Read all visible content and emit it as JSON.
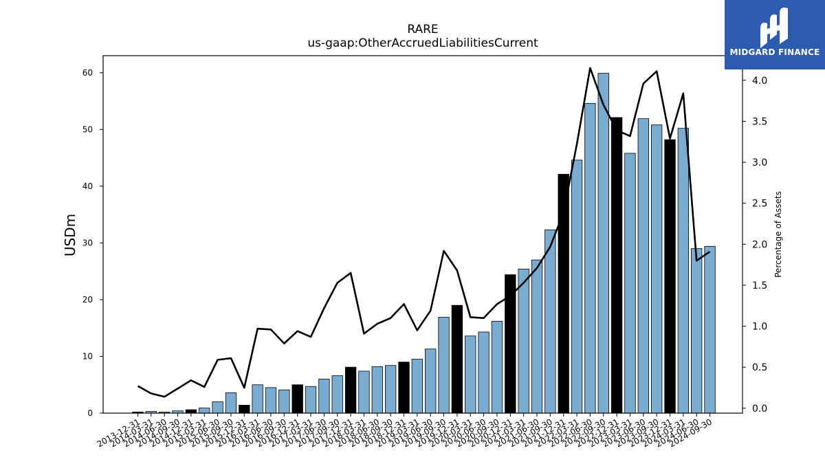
{
  "brand": {
    "name": "MIDGARD FINANCE",
    "logo_icon": "midgard-m-logo-icon",
    "bg_color": "#2d5bb0"
  },
  "colors": {
    "bar_normal": "#7aabd0",
    "bar_q4": "#000000",
    "line": "#000000"
  },
  "chart_data": {
    "type": "bar",
    "title": "RARE",
    "subtitle": "us-gaap:OtherAccruedLiabilitiesCurrent",
    "ylabel": "USDm",
    "y2label": "Percentage of Assets",
    "ylim": [
      0,
      63
    ],
    "y2lim": [
      -0.06,
      4.3
    ],
    "yticks": [
      0,
      10,
      20,
      30,
      40,
      50,
      60
    ],
    "y2ticks": [
      "0.0",
      "0.5",
      "1.0",
      "1.5",
      "2.0",
      "2.5",
      "3.0",
      "3.5",
      "4.0"
    ],
    "grid": false,
    "categories": [
      "2013-12-31",
      "2014-03-31",
      "2014-06-30",
      "2014-09-30",
      "2014-12-31",
      "2015-03-31",
      "2015-06-30",
      "2015-09-30",
      "2015-12-31",
      "2016-03-31",
      "2016-06-30",
      "2016-09-30",
      "2016-12-31",
      "2017-03-31",
      "2017-06-30",
      "2017-09-30",
      "2017-12-31",
      "2018-03-31",
      "2018-06-30",
      "2018-09-30",
      "2018-12-31",
      "2019-03-31",
      "2019-06-30",
      "2019-09-30",
      "2019-12-31",
      "2020-03-31",
      "2020-06-30",
      "2020-09-30",
      "2020-12-31",
      "2021-03-31",
      "2021-06-30",
      "2021-09-30",
      "2021-12-31",
      "2022-03-31",
      "2022-06-30",
      "2022-09-30",
      "2022-12-31",
      "2023-03-31",
      "2023-06-30",
      "2023-09-30",
      "2023-12-31",
      "2024-03-31",
      "2024-06-30",
      "2024-09-30"
    ],
    "series": [
      {
        "axis": "left",
        "kind": "bar",
        "values": [
          0.2,
          0.3,
          0.2,
          0.4,
          0.6,
          0.9,
          2.0,
          3.6,
          1.4,
          5.0,
          4.5,
          4.1,
          5.0,
          4.7,
          6.0,
          6.6,
          8.1,
          7.4,
          8.2,
          8.4,
          9.0,
          9.5,
          11.3,
          16.9,
          19.0,
          13.6,
          14.3,
          16.2,
          24.4,
          25.4,
          27.0,
          32.3,
          42.1,
          44.6,
          54.6,
          59.9,
          52.1,
          45.8,
          51.9,
          50.8,
          48.2,
          50.2,
          29.0,
          29.4
        ]
      },
      {
        "axis": "right",
        "kind": "line",
        "values": [
          0.27,
          0.18,
          0.14,
          0.24,
          0.34,
          0.26,
          0.59,
          0.61,
          0.25,
          0.97,
          0.96,
          0.79,
          0.94,
          0.87,
          1.22,
          1.53,
          1.65,
          0.91,
          1.03,
          1.1,
          1.27,
          0.95,
          1.19,
          1.92,
          1.68,
          1.11,
          1.1,
          1.27,
          1.37,
          1.53,
          1.71,
          1.97,
          2.39,
          3.22,
          4.15,
          3.7,
          3.39,
          3.32,
          3.96,
          4.11,
          3.29,
          3.84,
          1.8,
          1.91
        ]
      }
    ]
  }
}
